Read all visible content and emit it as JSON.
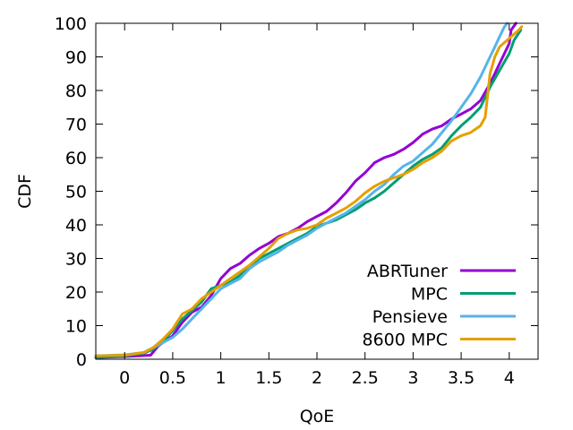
{
  "chart_data": {
    "type": "line",
    "title": "",
    "xlabel": "QoE",
    "ylabel": "CDF",
    "xlim": [
      -0.3,
      4.3
    ],
    "ylim": [
      0,
      100
    ],
    "xticks": [
      0,
      0.5,
      1,
      1.5,
      2,
      2.5,
      3,
      3.5,
      4
    ],
    "xtick_labels": [
      "0",
      "0.5",
      "1",
      "1.5",
      "2",
      "2.5",
      "3",
      "3.5",
      "4"
    ],
    "yticks": [
      0,
      10,
      20,
      30,
      40,
      50,
      60,
      70,
      80,
      90,
      100
    ],
    "ytick_labels": [
      "0",
      "10",
      "20",
      "30",
      "40",
      "50",
      "60",
      "70",
      "80",
      "90",
      "100"
    ],
    "grid": false,
    "legend_position": "bottom-right",
    "series": [
      {
        "name": "ABRTuner",
        "color": "#9400d3",
        "x": [
          -0.3,
          0.0,
          0.27,
          0.35,
          0.5,
          0.6,
          0.7,
          0.8,
          0.9,
          1.0,
          1.1,
          1.2,
          1.3,
          1.4,
          1.5,
          1.6,
          1.7,
          1.8,
          1.9,
          2.0,
          2.1,
          2.2,
          2.3,
          2.4,
          2.5,
          2.6,
          2.7,
          2.8,
          2.9,
          3.0,
          3.1,
          3.2,
          3.3,
          3.4,
          3.5,
          3.6,
          3.7,
          3.8,
          3.9,
          4.0,
          4.02,
          4.07
        ],
        "y": [
          0.5,
          0.8,
          1.2,
          4.0,
          7.0,
          11.0,
          14.0,
          15.5,
          19.0,
          24.0,
          27.0,
          28.5,
          31.0,
          33.0,
          34.5,
          36.5,
          37.5,
          39.0,
          41.0,
          42.5,
          44.0,
          46.5,
          49.5,
          53.0,
          55.5,
          58.5,
          60.0,
          61.0,
          62.5,
          64.5,
          67.0,
          68.5,
          69.5,
          71.5,
          73.0,
          74.5,
          77.0,
          82.0,
          88.0,
          94.0,
          98.0,
          100.0
        ]
      },
      {
        "name": "MPC",
        "color": "#009e73",
        "x": [
          -0.3,
          0.0,
          0.2,
          0.3,
          0.4,
          0.5,
          0.6,
          0.7,
          0.8,
          0.9,
          1.0,
          1.1,
          1.2,
          1.3,
          1.4,
          1.5,
          1.6,
          1.7,
          1.8,
          1.9,
          2.0,
          2.1,
          2.2,
          2.3,
          2.4,
          2.5,
          2.6,
          2.7,
          2.8,
          2.9,
          3.0,
          3.1,
          3.2,
          3.3,
          3.4,
          3.5,
          3.6,
          3.7,
          3.8,
          3.9,
          4.0,
          4.05,
          4.12
        ],
        "y": [
          0.5,
          1.0,
          1.8,
          3.0,
          5.5,
          8.5,
          12.0,
          14.5,
          17.0,
          21.0,
          22.0,
          23.0,
          25.0,
          27.5,
          30.0,
          31.5,
          33.0,
          34.5,
          36.0,
          37.5,
          39.5,
          40.5,
          41.5,
          43.0,
          44.5,
          46.5,
          48.0,
          50.0,
          52.5,
          55.0,
          57.5,
          59.5,
          61.0,
          63.0,
          66.5,
          69.5,
          72.0,
          75.0,
          81.0,
          86.0,
          91.0,
          95.0,
          98.0
        ]
      },
      {
        "name": "Pensieve",
        "color": "#56b4e9",
        "x": [
          -0.3,
          0.0,
          0.2,
          0.3,
          0.4,
          0.5,
          0.6,
          0.7,
          0.8,
          0.9,
          1.0,
          1.1,
          1.2,
          1.3,
          1.4,
          1.5,
          1.6,
          1.7,
          1.8,
          1.9,
          2.0,
          2.1,
          2.2,
          2.3,
          2.4,
          2.5,
          2.6,
          2.7,
          2.8,
          2.9,
          3.0,
          3.1,
          3.2,
          3.3,
          3.4,
          3.5,
          3.6,
          3.7,
          3.8,
          3.85,
          3.9,
          3.95,
          3.98
        ],
        "y": [
          1.0,
          1.3,
          2.0,
          3.5,
          5.0,
          6.5,
          9.0,
          12.0,
          15.0,
          18.0,
          21.0,
          22.5,
          24.0,
          27.0,
          29.0,
          30.5,
          32.0,
          34.0,
          35.5,
          37.0,
          39.0,
          40.5,
          42.0,
          43.5,
          45.5,
          47.5,
          50.0,
          52.0,
          55.0,
          57.5,
          59.0,
          61.5,
          64.0,
          67.5,
          71.0,
          75.0,
          79.0,
          84.0,
          90.0,
          93.0,
          96.0,
          99.0,
          100.0
        ]
      },
      {
        "name": "8600 MPC",
        "color": "#e69f00",
        "x": [
          -0.3,
          0.0,
          0.2,
          0.3,
          0.4,
          0.5,
          0.6,
          0.7,
          0.8,
          0.9,
          1.0,
          1.1,
          1.2,
          1.3,
          1.4,
          1.5,
          1.6,
          1.7,
          1.8,
          1.9,
          2.0,
          2.1,
          2.2,
          2.3,
          2.4,
          2.5,
          2.6,
          2.7,
          2.8,
          2.9,
          3.0,
          3.1,
          3.2,
          3.3,
          3.4,
          3.5,
          3.6,
          3.7,
          3.75,
          3.8,
          3.85,
          3.9,
          4.0,
          4.1,
          4.13
        ],
        "y": [
          1.0,
          1.2,
          2.0,
          3.5,
          6.0,
          9.0,
          13.5,
          15.0,
          18.0,
          20.0,
          22.0,
          24.0,
          26.0,
          28.0,
          30.5,
          33.0,
          36.0,
          37.5,
          38.5,
          39.0,
          40.0,
          42.0,
          43.5,
          45.0,
          47.0,
          49.5,
          51.5,
          53.0,
          54.0,
          55.0,
          56.5,
          58.5,
          60.0,
          62.0,
          65.0,
          66.5,
          67.5,
          69.5,
          72.0,
          85.0,
          90.0,
          93.0,
          95.5,
          98.0,
          99.0
        ]
      }
    ]
  }
}
